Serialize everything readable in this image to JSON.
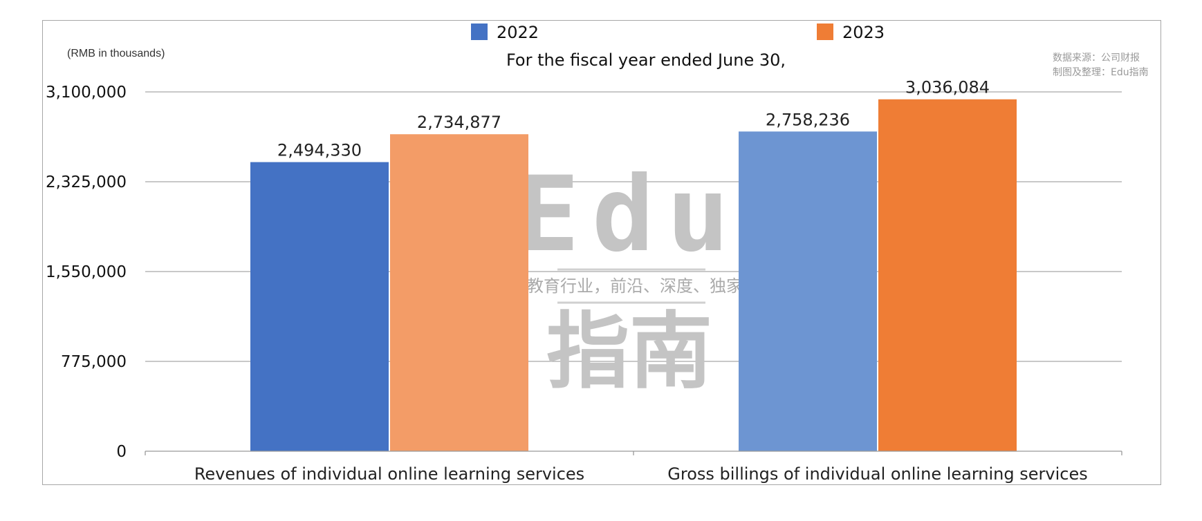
{
  "unit_note": "(RMB in thousands)",
  "source_line1": "数据来源：公司财报",
  "source_line2": "制图及整理：Edu指南",
  "watermark": {
    "brand": "Edu",
    "tagline": "教育行业，前沿、深度、独家",
    "brand_cn": "指南"
  },
  "chart_data": {
    "type": "bar",
    "title": "For the fiscal year ended June 30,",
    "xlabel": "",
    "ylabel": "",
    "ylim": [
      0,
      3100000
    ],
    "yticks": [
      0,
      775000,
      1550000,
      2325000,
      3100000
    ],
    "ytick_labels": [
      "0",
      "775,000",
      "1,550,000",
      "2,325,000",
      "3,100,000"
    ],
    "grid": true,
    "legend_position": "top",
    "categories": [
      "Revenues of individual online learning services",
      "Gross billings of individual online learning services"
    ],
    "series": [
      {
        "name": "2022",
        "values": [
          2494330,
          2758236
        ],
        "labels": [
          "2,494,330",
          "2,758,236"
        ],
        "colors": [
          "#4472c4",
          "#6d95d2"
        ]
      },
      {
        "name": "2023",
        "values": [
          2734877,
          3036084
        ],
        "labels": [
          "2,734,877",
          "3,036,084"
        ],
        "colors": [
          "#f39c67",
          "#ef7d35"
        ]
      }
    ],
    "legend_colors": [
      "#4472c4",
      "#ef7d35"
    ]
  }
}
